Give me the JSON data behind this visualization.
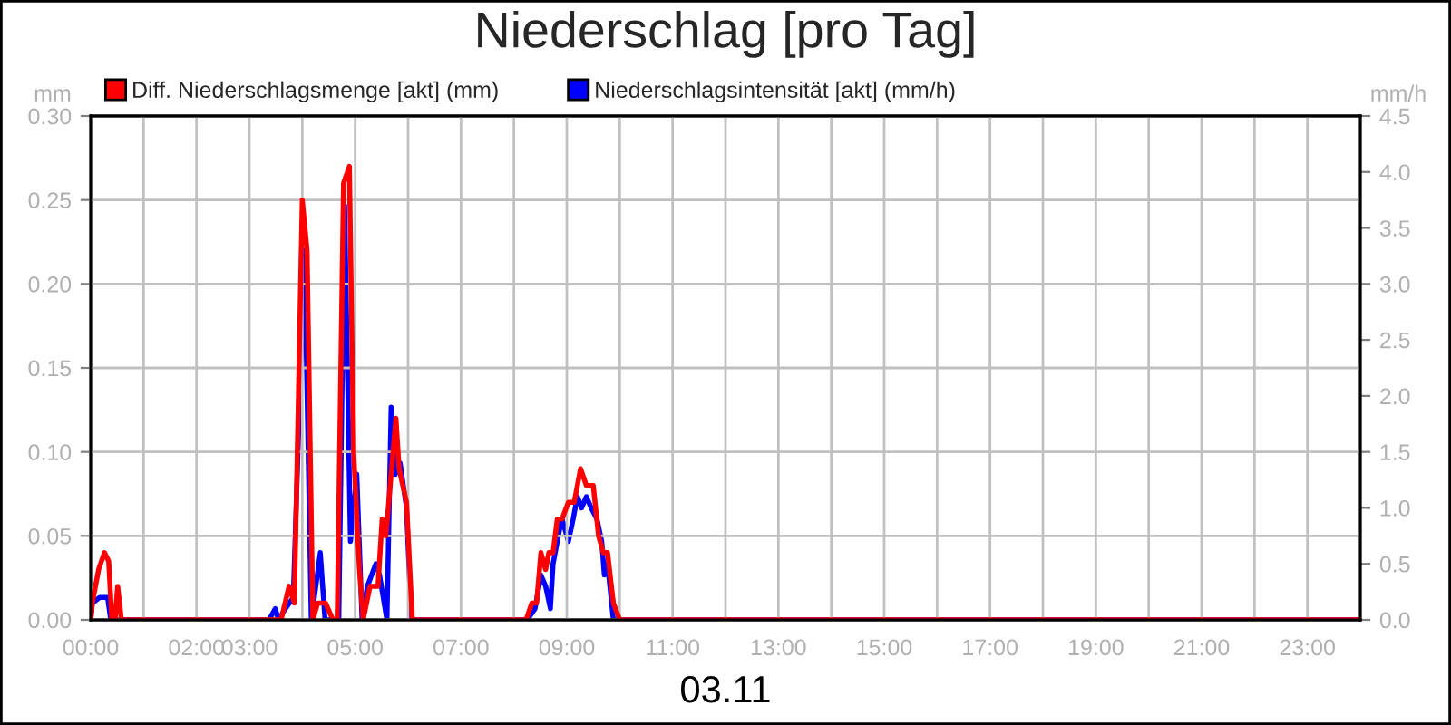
{
  "chart_data": {
    "type": "line",
    "title": "Niederschlag [pro Tag]",
    "xlabel": "03.11",
    "ylabel": "mm",
    "y2label": "mm/h",
    "xlim": [
      0,
      24
    ],
    "xticks": [
      {
        "value": 0,
        "label": "00:00"
      },
      {
        "value": 1,
        "label": null
      },
      {
        "value": 2,
        "label": "02:00"
      },
      {
        "value": 3,
        "label": "03:00"
      },
      {
        "value": 4,
        "label": null
      },
      {
        "value": 5,
        "label": "05:00"
      },
      {
        "value": 6,
        "label": null
      },
      {
        "value": 7,
        "label": "07:00"
      },
      {
        "value": 8,
        "label": null
      },
      {
        "value": 9,
        "label": "09:00"
      },
      {
        "value": 10,
        "label": null
      },
      {
        "value": 11,
        "label": "11:00"
      },
      {
        "value": 12,
        "label": null
      },
      {
        "value": 13,
        "label": "13:00"
      },
      {
        "value": 14,
        "label": null
      },
      {
        "value": 15,
        "label": "15:00"
      },
      {
        "value": 16,
        "label": null
      },
      {
        "value": 17,
        "label": "17:00"
      },
      {
        "value": 18,
        "label": null
      },
      {
        "value": 19,
        "label": "19:00"
      },
      {
        "value": 20,
        "label": null
      },
      {
        "value": 21,
        "label": "21:00"
      },
      {
        "value": 22,
        "label": null
      },
      {
        "value": 23,
        "label": "23:00"
      },
      {
        "value": 24,
        "label": null
      }
    ],
    "ylim": [
      0,
      0.3
    ],
    "yticks": [
      {
        "value": 0,
        "label": "0.00"
      },
      {
        "value": 0.05,
        "label": "0.05"
      },
      {
        "value": 0.1,
        "label": "0.10"
      },
      {
        "value": 0.15,
        "label": "0.15"
      },
      {
        "value": 0.2,
        "label": "0.20"
      },
      {
        "value": 0.25,
        "label": "0.25"
      },
      {
        "value": 0.3,
        "label": "0.30"
      }
    ],
    "y2lim": [
      0,
      4.5
    ],
    "y2ticks": [
      {
        "value": 0,
        "label": "0.0"
      },
      {
        "value": 0.5,
        "label": "0.5"
      },
      {
        "value": 1,
        "label": "1.0"
      },
      {
        "value": 1.5,
        "label": "1.5"
      },
      {
        "value": 2,
        "label": "2.0"
      },
      {
        "value": 2.5,
        "label": "2.5"
      },
      {
        "value": 3,
        "label": "3.0"
      },
      {
        "value": 3.5,
        "label": "3.5"
      },
      {
        "value": 4,
        "label": "4.0"
      },
      {
        "value": 4.5,
        "label": "4.5"
      }
    ],
    "grid": true,
    "legend": "top left",
    "marker": "none",
    "line_style": "solid",
    "series": [
      {
        "name": "Diff. Niederschlagsmenge [akt] (mm)",
        "color": "#ff0000",
        "x": [
          0,
          0.03,
          0.15,
          0.26,
          0.34,
          0.4,
          0.46,
          0.51,
          0.58,
          3.6,
          3.75,
          3.85,
          4.0,
          4.09,
          4.2,
          4.29,
          4.44,
          4.58,
          4.66,
          4.78,
          4.89,
          4.97,
          5.08,
          5.15,
          5.28,
          5.43,
          5.51,
          5.58,
          5.77,
          5.83,
          5.97,
          6.08,
          8.23,
          8.34,
          8.43,
          8.51,
          8.6,
          8.66,
          8.74,
          8.82,
          8.91,
          9.03,
          9.14,
          9.26,
          9.37,
          9.5,
          9.6,
          9.69,
          9.77,
          9.88,
          10.0,
          24
        ],
        "values": [
          0,
          0.01,
          0.03,
          0.04,
          0.035,
          0,
          0,
          0.02,
          0,
          0,
          0.02,
          0.01,
          0.25,
          0.22,
          0,
          0.01,
          0.01,
          0,
          0,
          0.26,
          0.27,
          0.1,
          0.03,
          0,
          0.02,
          0.02,
          0.06,
          0.05,
          0.12,
          0.09,
          0.07,
          0,
          0,
          0.01,
          0.01,
          0.04,
          0.03,
          0.04,
          0.04,
          0.06,
          0.06,
          0.07,
          0.07,
          0.09,
          0.08,
          0.08,
          0.05,
          0.04,
          0.04,
          0.01,
          0,
          0
        ]
      },
      {
        "name": "Niederschlagsintensität [akt] (mm/h)",
        "color": "#0000ff",
        "axis": "y2",
        "x": [
          0,
          0.03,
          0.17,
          0.32,
          0.38,
          3.37,
          3.49,
          3.55,
          3.68,
          3.83,
          4.04,
          4.17,
          4.34,
          4.43,
          4.69,
          4.8,
          4.91,
          5.03,
          5.13,
          5.23,
          5.39,
          5.46,
          5.6,
          5.68,
          5.76,
          5.85,
          5.97,
          6.06,
          8.25,
          8.4,
          8.51,
          8.6,
          8.69,
          8.74,
          8.86,
          8.91,
          9.03,
          9.12,
          9.2,
          9.28,
          9.37,
          9.46,
          9.57,
          9.66,
          9.71,
          9.77,
          9.88,
          24
        ],
        "values": [
          0,
          0.15,
          0.2,
          0.2,
          0,
          0,
          0.1,
          0,
          0.1,
          0.2,
          3.3,
          0,
          0.6,
          0,
          0,
          3.7,
          0.7,
          1.3,
          0,
          0.3,
          0.5,
          0.4,
          0,
          1.9,
          1.3,
          1.4,
          1.0,
          0,
          0,
          0.1,
          0.4,
          0.3,
          0.1,
          0.5,
          0.8,
          0.9,
          0.7,
          0.9,
          1.1,
          1.0,
          1.1,
          1.0,
          0.9,
          0.7,
          0.4,
          0.5,
          0,
          0
        ]
      }
    ]
  }
}
